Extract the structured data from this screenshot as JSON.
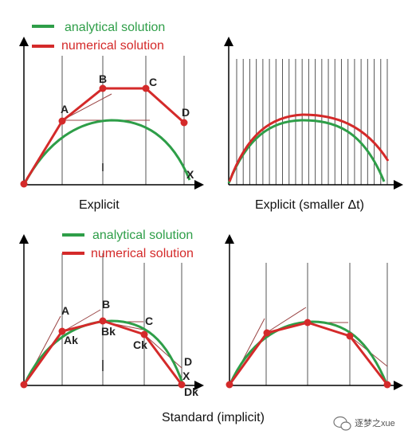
{
  "colors": {
    "analytical": "#2e9e48",
    "numerical": "#d42a2a",
    "tangent": "#a23a3a",
    "axis": "#000000",
    "grid": "#555555"
  },
  "legend_top": {
    "analytical_label": "analytical solution",
    "numerical_label": "numerical solution"
  },
  "legend_bottom": {
    "analytical_label": "analytical solution",
    "numerical_label": "numerical solution"
  },
  "captions": {
    "explicit": "Explicit",
    "explicit_small": "Explicit (smaller Δt)",
    "implicit": "Standard (implicit)"
  },
  "labels_explicit": {
    "A": "A",
    "B": "B",
    "C": "C",
    "D": "D",
    "X": "X"
  },
  "labels_implicit": {
    "A": "A",
    "B": "B",
    "C": "C",
    "D": "D",
    "X": "X",
    "Ak": "Ak",
    "Bk": "Bk",
    "Ck": "Ck",
    "Dk": "Dk"
  },
  "watermark": {
    "icon": "wechat-icon",
    "text": "逐梦之xue"
  }
}
